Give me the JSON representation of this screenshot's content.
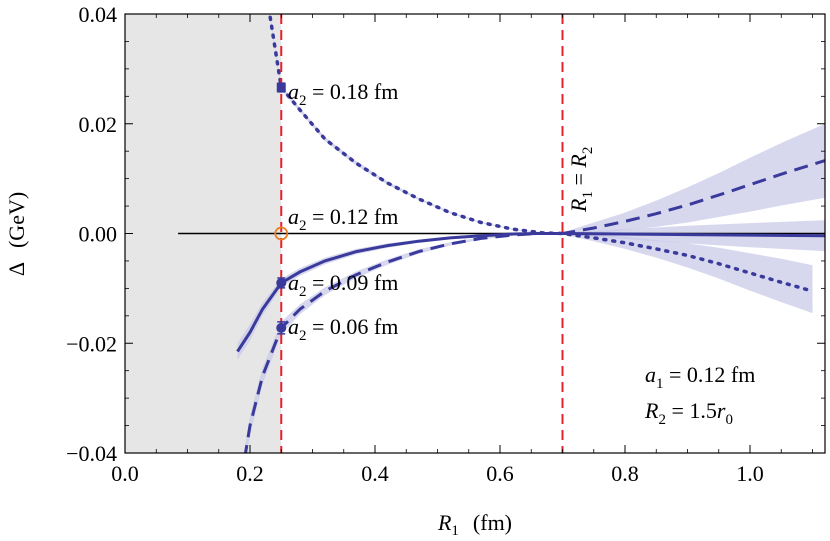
{
  "chart_data": {
    "type": "line",
    "xlabel": {
      "var": "R",
      "sub": "1",
      "unit": "(fm)"
    },
    "ylabel": {
      "var": "Δ",
      "unit": "(GeV)"
    },
    "xlim": [
      0.0,
      1.12
    ],
    "ylim": [
      -0.04,
      0.04
    ],
    "xticks": [
      {
        "v": 0.0,
        "label": "0.0"
      },
      {
        "v": 0.2,
        "label": "0.2"
      },
      {
        "v": 0.4,
        "label": "0.4"
      },
      {
        "v": 0.6,
        "label": "0.6"
      },
      {
        "v": 0.8,
        "label": "0.8"
      },
      {
        "v": 1.0,
        "label": "1.0"
      }
    ],
    "yticks": [
      {
        "v": -0.04,
        "label": "−0.04"
      },
      {
        "v": -0.02,
        "label": "−0.02"
      },
      {
        "v": 0.0,
        "label": "0.00"
      },
      {
        "v": 0.02,
        "label": "0.02"
      },
      {
        "v": 0.04,
        "label": "0.04"
      }
    ],
    "shaded_region": {
      "x_from": 0.0,
      "x_to": 0.25,
      "color": "#e6e6e6"
    },
    "vlines": [
      {
        "name": "cutoff-line",
        "x": 0.25,
        "color": "#e8202a",
        "label": null
      },
      {
        "name": "r1-equals-r2-line",
        "x": 0.7,
        "color": "#e8202a",
        "label": {
          "a": "R",
          "a_sub": "1",
          "eq": " = ",
          "b": "R",
          "b_sub": "2"
        }
      }
    ],
    "colors": {
      "series": "#3a3a9c",
      "band": "#c9c9e8",
      "zero_line": "#000000",
      "open_marker": "#ee7d22"
    },
    "series": [
      {
        "key": "a018",
        "style": "dotted",
        "label": {
          "var": "a",
          "sub": "2",
          "text": " = 0.18 fm"
        },
        "points": [
          [
            0.23,
            0.041
          ],
          [
            0.25,
            0.0266
          ],
          [
            0.28,
            0.0225
          ],
          [
            0.32,
            0.0172
          ],
          [
            0.37,
            0.0128
          ],
          [
            0.42,
            0.0092
          ],
          [
            0.47,
            0.0063
          ],
          [
            0.52,
            0.0038
          ],
          [
            0.57,
            0.002
          ],
          [
            0.62,
            0.0008
          ],
          [
            0.67,
            0.0001
          ],
          [
            0.7,
            0.0
          ],
          [
            0.75,
            -0.0008
          ],
          [
            0.8,
            -0.0017
          ],
          [
            0.85,
            -0.0028
          ],
          [
            0.9,
            -0.004
          ],
          [
            0.95,
            -0.0055
          ],
          [
            1.0,
            -0.0072
          ],
          [
            1.05,
            -0.0089
          ],
          [
            1.1,
            -0.0105
          ]
        ],
        "band_low": [
          [
            0.23,
            0.0405
          ],
          [
            0.25,
            0.0262
          ],
          [
            0.28,
            0.0221
          ],
          [
            0.32,
            0.0168
          ],
          [
            0.37,
            0.0124
          ],
          [
            0.42,
            0.0089
          ],
          [
            0.47,
            0.0061
          ],
          [
            0.52,
            0.0037
          ],
          [
            0.57,
            0.0019
          ],
          [
            0.62,
            0.0007
          ],
          [
            0.67,
            0.0
          ],
          [
            0.7,
            -0.0002
          ],
          [
            0.75,
            -0.0014
          ],
          [
            0.8,
            -0.0028
          ],
          [
            0.85,
            -0.0044
          ],
          [
            0.9,
            -0.0062
          ],
          [
            0.95,
            -0.0082
          ],
          [
            1.0,
            -0.0104
          ],
          [
            1.05,
            -0.0125
          ],
          [
            1.1,
            -0.0145
          ]
        ],
        "band_high": [
          [
            0.23,
            0.0415
          ],
          [
            0.25,
            0.027
          ],
          [
            0.28,
            0.0229
          ],
          [
            0.32,
            0.0176
          ],
          [
            0.37,
            0.0132
          ],
          [
            0.42,
            0.0095
          ],
          [
            0.47,
            0.0065
          ],
          [
            0.52,
            0.004
          ],
          [
            0.57,
            0.0021
          ],
          [
            0.62,
            0.0009
          ],
          [
            0.67,
            0.0002
          ],
          [
            0.7,
            0.0002
          ],
          [
            0.75,
            -0.0002
          ],
          [
            0.8,
            -0.0006
          ],
          [
            0.85,
            -0.0012
          ],
          [
            0.9,
            -0.0018
          ],
          [
            0.95,
            -0.0026
          ],
          [
            1.0,
            -0.0036
          ],
          [
            1.05,
            -0.0046
          ],
          [
            1.1,
            -0.0058
          ]
        ],
        "marker": {
          "x": 0.25,
          "y": 0.0266,
          "shape": "square",
          "err": 0.0008
        }
      },
      {
        "key": "a012",
        "style": "solid-black",
        "label": {
          "var": "a",
          "sub": "2",
          "text": " = 0.12 fm"
        },
        "points": [
          [
            0.085,
            0.0
          ],
          [
            1.12,
            0.0
          ]
        ],
        "marker": {
          "x": 0.25,
          "y": 0.0,
          "shape": "open-circle"
        }
      },
      {
        "key": "a009",
        "style": "solid",
        "label": {
          "var": "a",
          "sub": "2",
          "text": " = 0.09 fm"
        },
        "points": [
          [
            0.18,
            -0.0215
          ],
          [
            0.2,
            -0.018
          ],
          [
            0.22,
            -0.0138
          ],
          [
            0.25,
            -0.009
          ],
          [
            0.28,
            -0.007
          ],
          [
            0.32,
            -0.005
          ],
          [
            0.37,
            -0.0033
          ],
          [
            0.42,
            -0.0022
          ],
          [
            0.47,
            -0.0014
          ],
          [
            0.52,
            -0.0008
          ],
          [
            0.57,
            -0.0004
          ],
          [
            0.62,
            -0.0001
          ],
          [
            0.66,
            0.0
          ],
          [
            0.7,
            0.0
          ],
          [
            0.8,
            -0.0001
          ],
          [
            0.9,
            -0.0002
          ],
          [
            1.0,
            -0.0003
          ],
          [
            1.12,
            -0.0004
          ]
        ],
        "band_low": [
          [
            0.18,
            -0.023
          ],
          [
            0.2,
            -0.0195
          ],
          [
            0.22,
            -0.015
          ],
          [
            0.25,
            -0.0098
          ],
          [
            0.28,
            -0.0077
          ],
          [
            0.32,
            -0.0056
          ],
          [
            0.37,
            -0.0038
          ],
          [
            0.42,
            -0.0026
          ],
          [
            0.47,
            -0.0017
          ],
          [
            0.52,
            -0.001
          ],
          [
            0.57,
            -0.0005
          ],
          [
            0.62,
            -0.0002
          ],
          [
            0.66,
            -0.0001
          ],
          [
            0.7,
            -0.0002
          ],
          [
            0.8,
            -0.001
          ],
          [
            0.9,
            -0.0018
          ],
          [
            1.0,
            -0.0025
          ],
          [
            1.12,
            -0.0032
          ]
        ],
        "band_high": [
          [
            0.18,
            -0.02
          ],
          [
            0.2,
            -0.0165
          ],
          [
            0.22,
            -0.0126
          ],
          [
            0.25,
            -0.0082
          ],
          [
            0.28,
            -0.0063
          ],
          [
            0.32,
            -0.0044
          ],
          [
            0.37,
            -0.0028
          ],
          [
            0.42,
            -0.0018
          ],
          [
            0.47,
            -0.0011
          ],
          [
            0.52,
            -0.0006
          ],
          [
            0.57,
            -0.0003
          ],
          [
            0.62,
            0.0
          ],
          [
            0.66,
            0.0001
          ],
          [
            0.7,
            0.0002
          ],
          [
            0.8,
            0.0008
          ],
          [
            0.9,
            0.0014
          ],
          [
            1.0,
            0.0019
          ],
          [
            1.12,
            0.0024
          ]
        ],
        "marker": {
          "x": 0.25,
          "y": -0.009,
          "shape": "circle",
          "err": 0.0009
        }
      },
      {
        "key": "a006",
        "style": "dashed",
        "label": {
          "var": "a",
          "sub": "2",
          "text": " = 0.06 fm"
        },
        "points": [
          [
            0.18,
            -0.049
          ],
          [
            0.2,
            -0.035
          ],
          [
            0.22,
            -0.026
          ],
          [
            0.25,
            -0.0172
          ],
          [
            0.28,
            -0.0138
          ],
          [
            0.32,
            -0.0105
          ],
          [
            0.37,
            -0.0075
          ],
          [
            0.42,
            -0.0052
          ],
          [
            0.47,
            -0.0033
          ],
          [
            0.52,
            -0.0019
          ],
          [
            0.57,
            -0.0009
          ],
          [
            0.62,
            -0.0003
          ],
          [
            0.66,
            0.0
          ],
          [
            0.7,
            0.0
          ],
          [
            0.75,
            0.001
          ],
          [
            0.8,
            0.0022
          ],
          [
            0.85,
            0.0036
          ],
          [
            0.9,
            0.0052
          ],
          [
            0.95,
            0.007
          ],
          [
            1.0,
            0.0089
          ],
          [
            1.05,
            0.0108
          ],
          [
            1.12,
            0.0133
          ]
        ],
        "band_low": [
          [
            0.18,
            -0.051
          ],
          [
            0.2,
            -0.0368
          ],
          [
            0.22,
            -0.0275
          ],
          [
            0.25,
            -0.0183
          ],
          [
            0.28,
            -0.0147
          ],
          [
            0.32,
            -0.0112
          ],
          [
            0.37,
            -0.0081
          ],
          [
            0.42,
            -0.0057
          ],
          [
            0.47,
            -0.0037
          ],
          [
            0.52,
            -0.0022
          ],
          [
            0.57,
            -0.0011
          ],
          [
            0.62,
            -0.0004
          ],
          [
            0.66,
            -0.0001
          ],
          [
            0.7,
            -0.0002
          ],
          [
            0.75,
            0.0
          ],
          [
            0.8,
            0.0006
          ],
          [
            0.85,
            0.0012
          ],
          [
            0.9,
            0.002
          ],
          [
            0.95,
            0.003
          ],
          [
            1.0,
            0.004
          ],
          [
            1.05,
            0.0051
          ],
          [
            1.12,
            0.0065
          ]
        ],
        "band_high": [
          [
            0.18,
            -0.047
          ],
          [
            0.2,
            -0.0332
          ],
          [
            0.22,
            -0.0245
          ],
          [
            0.25,
            -0.0161
          ],
          [
            0.28,
            -0.0129
          ],
          [
            0.32,
            -0.0098
          ],
          [
            0.37,
            -0.0069
          ],
          [
            0.42,
            -0.0047
          ],
          [
            0.47,
            -0.0029
          ],
          [
            0.52,
            -0.0016
          ],
          [
            0.57,
            -0.0007
          ],
          [
            0.62,
            -0.0002
          ],
          [
            0.66,
            0.0001
          ],
          [
            0.7,
            0.0002
          ],
          [
            0.75,
            0.002
          ],
          [
            0.8,
            0.0038
          ],
          [
            0.85,
            0.006
          ],
          [
            0.9,
            0.0084
          ],
          [
            0.95,
            0.011
          ],
          [
            1.0,
            0.0138
          ],
          [
            1.05,
            0.0165
          ],
          [
            1.12,
            0.02
          ]
        ],
        "marker": {
          "x": 0.25,
          "y": -0.0172,
          "shape": "circle",
          "err": 0.0011
        }
      }
    ],
    "annotations": [
      {
        "key": "a1",
        "var": "a",
        "sub": "1",
        "text": " = 0.12 fm"
      },
      {
        "key": "r2",
        "var": "R",
        "sub": "2",
        "text": " = 1.5",
        "tail_var": "r",
        "tail_sub": "0"
      }
    ]
  }
}
